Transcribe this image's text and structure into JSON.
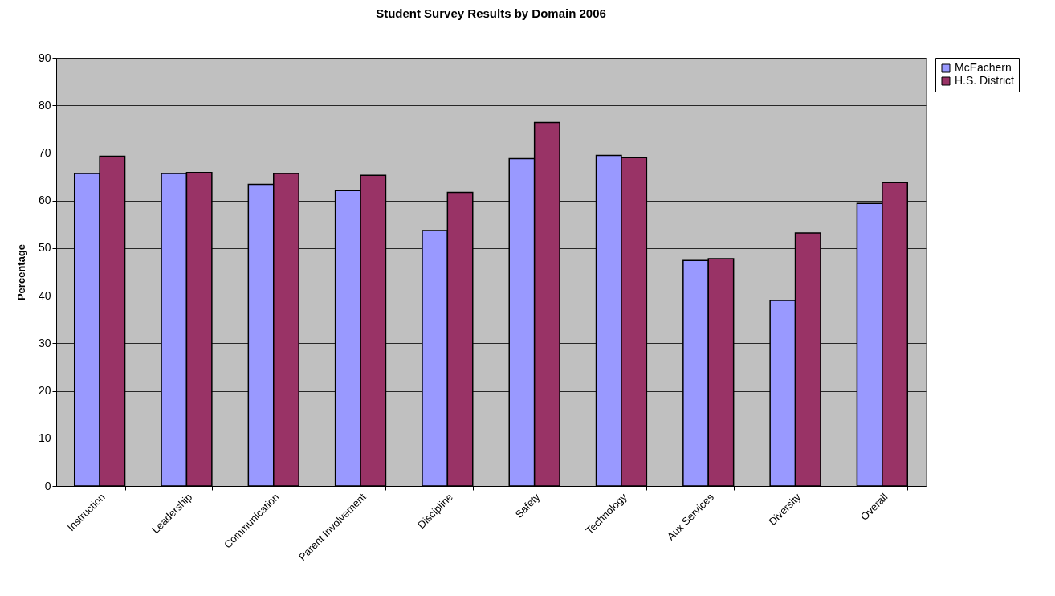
{
  "chart_data": {
    "type": "bar",
    "title": "Student Survey Results by Domain 2006",
    "ylabel": "Percentage",
    "categories": [
      "Instruction",
      "Leadership",
      "Communication",
      "Parent Involvement",
      "Discipline",
      "Safety",
      "Technology",
      "Aux Services",
      "Diversity",
      "Overall"
    ],
    "series": [
      {
        "name": "McEachern",
        "color": "#9999ff",
        "values": [
          65.7,
          65.7,
          63.4,
          62.1,
          53.7,
          68.8,
          69.5,
          47.4,
          39.0,
          59.4
        ]
      },
      {
        "name": "H.S. District",
        "color": "#993366",
        "values": [
          69.3,
          65.9,
          65.7,
          65.3,
          61.7,
          76.4,
          69.0,
          47.8,
          53.2,
          63.8
        ]
      }
    ],
    "ylim": [
      0,
      90
    ],
    "yticks": [
      0,
      10,
      20,
      30,
      40,
      50,
      60,
      70,
      80,
      90
    ],
    "grid": "y",
    "legend": "right"
  }
}
